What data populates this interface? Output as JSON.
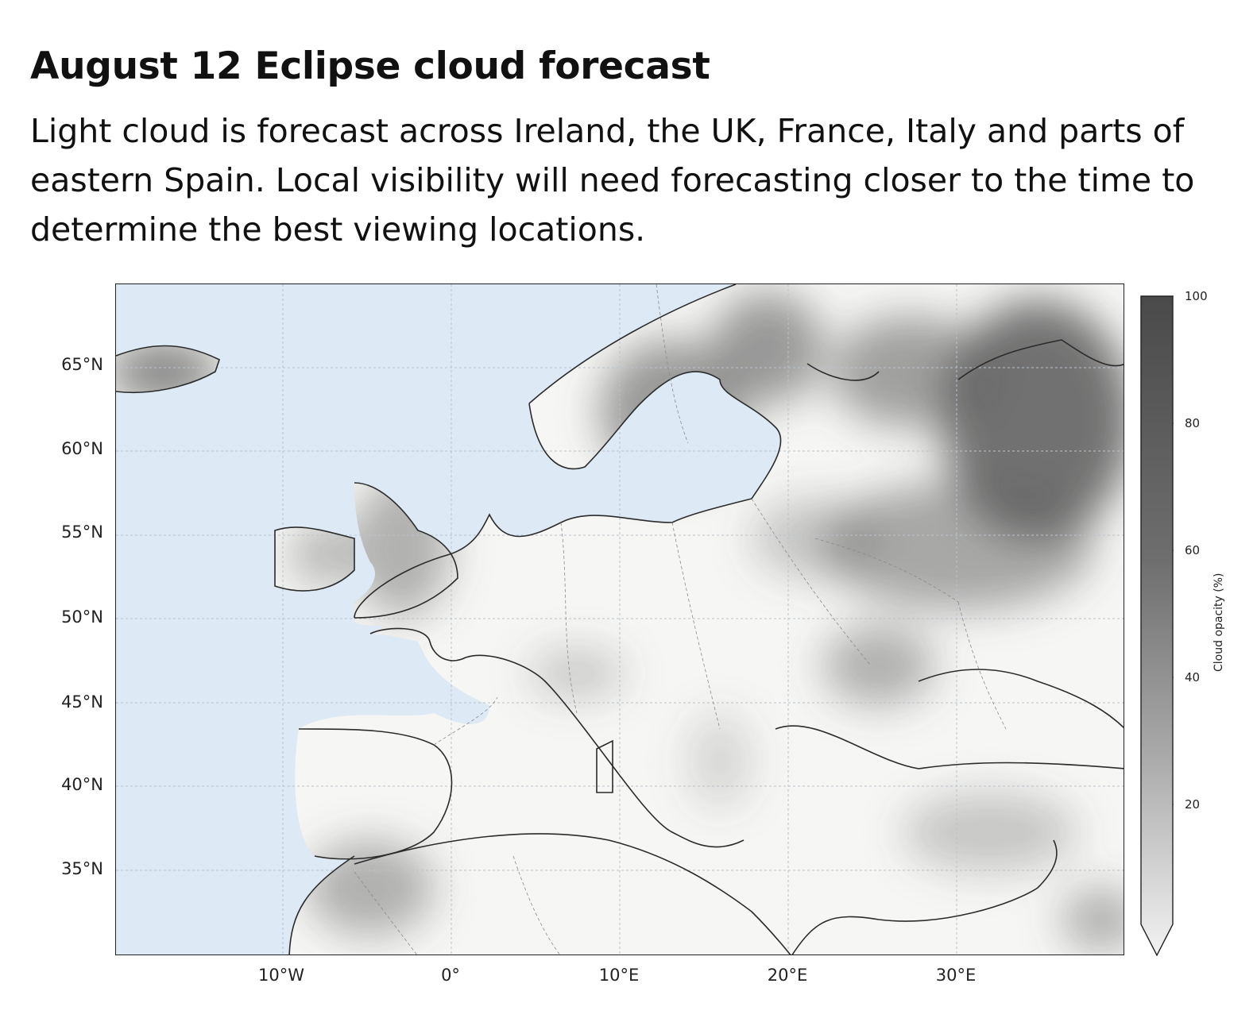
{
  "header": {
    "title": "August 12 Eclipse cloud forecast",
    "description": "Light cloud is forecast across Ireland, the UK, France, Italy and parts of eastern Spain. Local visibility will need forecasting closer to the time to determine the best viewing locations."
  },
  "map": {
    "lat_labels": [
      "65°N",
      "60°N",
      "55°N",
      "50°N",
      "45°N",
      "40°N",
      "35°N"
    ],
    "lon_labels": [
      "10°W",
      "0°",
      "10°E",
      "20°E",
      "30°E"
    ],
    "colors": {
      "sea": "#dde9f4",
      "land_clear": "#f7f7f5",
      "cloud_max": "#4a4a4a",
      "coast": "#2b2b2b"
    }
  },
  "colorbar": {
    "label": "Cloud opacity (%)",
    "ticks": [
      "100",
      "80",
      "60",
      "40",
      "20"
    ]
  }
}
